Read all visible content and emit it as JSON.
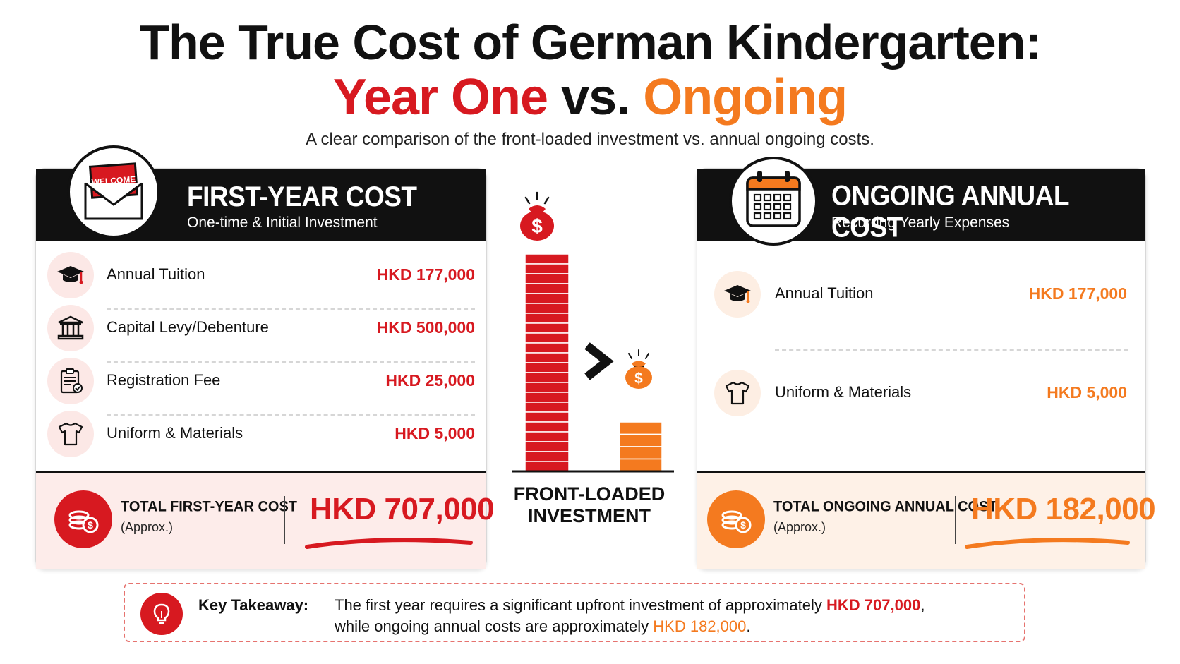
{
  "title": {
    "line1": "The True Cost of German Kindergarten:",
    "line2_part1": "Year One",
    "line2_part2": " vs. ",
    "line2_part3": "Ongoing"
  },
  "subtitle": "A clear comparison of the front-loaded investment vs. annual ongoing costs.",
  "first_year": {
    "badge_text": "WELCOME",
    "heading": "FIRST-YEAR COST",
    "subheading": "One-time & Initial Investment",
    "items": [
      {
        "label": "Annual Tuition",
        "value": "HKD 177,000",
        "icon": "graduation-cap-icon"
      },
      {
        "label": "Capital Levy/Debenture",
        "value": "HKD 500,000",
        "icon": "bank-icon"
      },
      {
        "label": "Registration Fee",
        "value": "HKD 25,000",
        "icon": "clipboard-icon"
      },
      {
        "label": "Uniform & Materials",
        "value": "HKD 5,000",
        "icon": "tshirt-icon"
      }
    ],
    "total_label": "TOTAL FIRST-YEAR COST",
    "total_sub": "(Approx.)",
    "total_value": "HKD 707,000"
  },
  "middle": {
    "symbol": ">",
    "label_line1": "FRONT-LOADED",
    "label_line2": "INVESTMENT"
  },
  "ongoing": {
    "heading": "ONGOING ANNUAL COST",
    "subheading": "Recurring Yearly Expenses",
    "items": [
      {
        "label": "Annual Tuition",
        "value": "HKD 177,000",
        "icon": "graduation-cap-icon"
      },
      {
        "label": "Uniform & Materials",
        "value": "HKD 5,000",
        "icon": "tshirt-icon"
      }
    ],
    "total_label": "TOTAL ONGOING ANNUAL COST",
    "total_sub": "(Approx.)",
    "total_value": "HKD 182,000"
  },
  "takeaway": {
    "label": "Key Takeaway:",
    "text_1": "The first year requires a significant upfront investment of approximately ",
    "amount_1": "HKD 707,000",
    "text_2": ",",
    "text_3": "while ongoing annual costs are approximately ",
    "amount_2": "HKD 182,000",
    "text_4": "."
  },
  "colors": {
    "red": "#d71920",
    "orange": "#f47a1f",
    "black": "#111111"
  }
}
